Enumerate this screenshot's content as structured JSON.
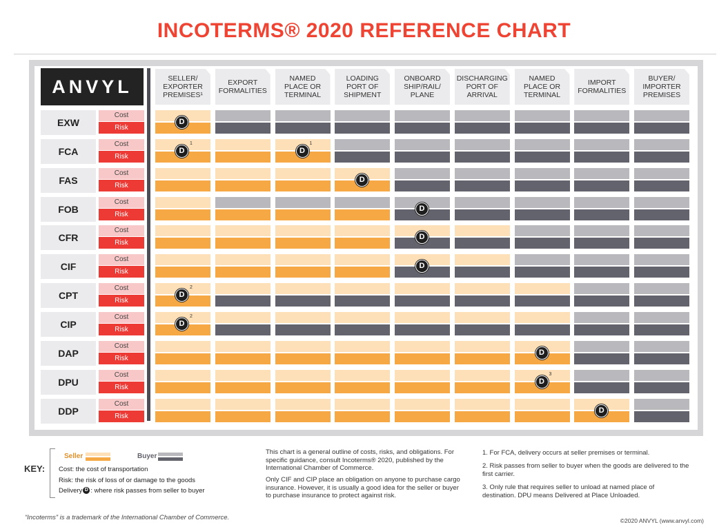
{
  "title": "INCOTERMS® 2020 REFERENCE CHART",
  "logo": "ANVYL",
  "columns": [
    "SELLER/\nEXPORTER\nPREMISES¹",
    "EXPORT\nFORMALITIES",
    "NAMED\nPLACE OR\nTERMINAL",
    "LOADING\nPORT OF\nSHIPMENT",
    "ONBOARD\nSHIP/RAIL/\nPLANE",
    "DISCHARGING\nPORT OF\nARRIVAL",
    "NAMED\nPLACE OR\nTERMINAL",
    "IMPORT\nFORMALITIES",
    "BUYER/\nIMPORTER\nPREMISES"
  ],
  "cost_label": "Cost",
  "risk_label": "Risk",
  "delivery_glyph": "D",
  "rows": [
    {
      "term": "EXW",
      "cost_seller_cols": 1,
      "risk_seller_cols": 1,
      "delivery_col": 0,
      "footnote": ""
    },
    {
      "term": "FCA",
      "cost_seller_cols": 3,
      "risk_seller_cols": 3,
      "delivery_col": 0,
      "delivery_col2": 2,
      "footnote": "1"
    },
    {
      "term": "FAS",
      "cost_seller_cols": 4,
      "risk_seller_cols": 4,
      "delivery_col": 3,
      "footnote": ""
    },
    {
      "term": "FOB",
      "cost_seller_cols": 1,
      "risk_seller_cols": 4,
      "delivery_col": 4,
      "footnote": ""
    },
    {
      "term": "CFR",
      "cost_seller_cols": 6,
      "risk_seller_cols": 4,
      "delivery_col": 4,
      "footnote": ""
    },
    {
      "term": "CIF",
      "cost_seller_cols": 6,
      "risk_seller_cols": 4,
      "delivery_col": 4,
      "footnote": ""
    },
    {
      "term": "CPT",
      "cost_seller_cols": 7,
      "risk_seller_cols": 1,
      "delivery_col": 0,
      "footnote": "2"
    },
    {
      "term": "CIP",
      "cost_seller_cols": 7,
      "risk_seller_cols": 1,
      "delivery_col": 0,
      "footnote": "2"
    },
    {
      "term": "DAP",
      "cost_seller_cols": 7,
      "risk_seller_cols": 7,
      "delivery_col": 6,
      "footnote": ""
    },
    {
      "term": "DPU",
      "cost_seller_cols": 7,
      "risk_seller_cols": 7,
      "delivery_col": 6,
      "footnote": "3"
    },
    {
      "term": "DDP",
      "cost_seller_cols": 8,
      "risk_seller_cols": 8,
      "delivery_col": 7,
      "footnote": ""
    }
  ],
  "key": {
    "label": "KEY:",
    "seller": "Seller",
    "buyer": "Buyer",
    "cost_def": "Cost: the cost of transportation",
    "risk_def": "Risk: the risk of loss of or damage to the goods",
    "delivery_pre": "Delivery",
    "delivery_post": ": where risk passes from seller to buyer"
  },
  "notes": {
    "general1": "This chart is a general outline of costs, risks, and obligations. For specific guidance, consult Incoterms® 2020, published by the International Chamber of Commerce.",
    "general2": "Only CIF and CIP place an obligation on anyone to purchase cargo insurance. However, it is usually a good idea for the seller or buyer to purchase insurance to protect against risk.",
    "fn1": "1. For FCA, delivery occurs at seller premises or terminal.",
    "fn2": "2. Risk passes from seller to buyer when the goods are delivered to the first carrier.",
    "fn3": "3. Only rule that requires seller to unload  at named place of destination. DPU means Delivered at Place Unloaded."
  },
  "footer_left": "“Incoterms” is a trademark of the International Chamber of Commerce.",
  "footer_right": "©2020 ANVYL (www.anvyl.com)",
  "colors": {
    "title": "#ee4433",
    "seller_cost": "#fde0b8",
    "seller_risk": "#f5a844",
    "buyer_cost": "#b8b8bd",
    "buyer_risk": "#62636c"
  }
}
